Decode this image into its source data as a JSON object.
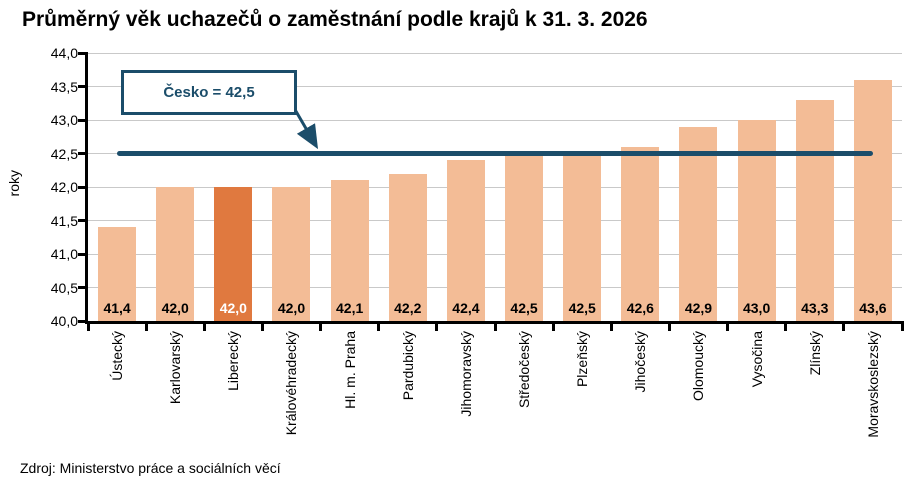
{
  "title": "Průměrný věk uchazečů o zaměstnání podle krajů k 31. 3. 2026",
  "source": "Zdroj: Ministerstvo práce a sociálních věcí",
  "chart_data": {
    "type": "bar",
    "title": "Průměrný věk uchazečů o zaměstnání podle krajů k 31. 3. 2026",
    "xlabel": "",
    "ylabel": "roky",
    "categories": [
      "Ústecký",
      "Karlovarský",
      "Liberecký",
      "Královéhradecký",
      "Hl. m. Praha",
      "Pardubický",
      "Jihomoravský",
      "Středočeský",
      "Plzeňský",
      "Jihočeský",
      "Olomoucký",
      "Vysočina",
      "Zlínský",
      "Moravskoslezský"
    ],
    "values": [
      41.4,
      42.0,
      42.0,
      42.0,
      42.1,
      42.2,
      42.4,
      42.5,
      42.5,
      42.6,
      42.9,
      43.0,
      43.3,
      43.6
    ],
    "value_labels": [
      "41,4",
      "42,0",
      "42,0",
      "42,0",
      "42,1",
      "42,2",
      "42,4",
      "42,5",
      "42,5",
      "42,6",
      "42,9",
      "43,0",
      "43,3",
      "43,6"
    ],
    "highlight_index": 2,
    "highlight_category": "Liberecký",
    "ylim": [
      40.0,
      44.0
    ],
    "ytick_step": 0.5,
    "ytick_labels": [
      "40,0",
      "40,5",
      "41,0",
      "41,5",
      "42,0",
      "42,5",
      "43,0",
      "43,5",
      "44,0"
    ],
    "grid": true,
    "legend": "none",
    "reference_line": {
      "value": 42.5,
      "label": "Česko = 42,5"
    },
    "colors": {
      "bar": "#F3BC96",
      "highlight_bar": "#E0793F",
      "reference": "#1B4D6A",
      "grid": "#C9C9C9",
      "axis": "#000000",
      "value_text": "#000000",
      "highlight_value_text": "#FFFFFF",
      "title_text": "#000000"
    }
  }
}
